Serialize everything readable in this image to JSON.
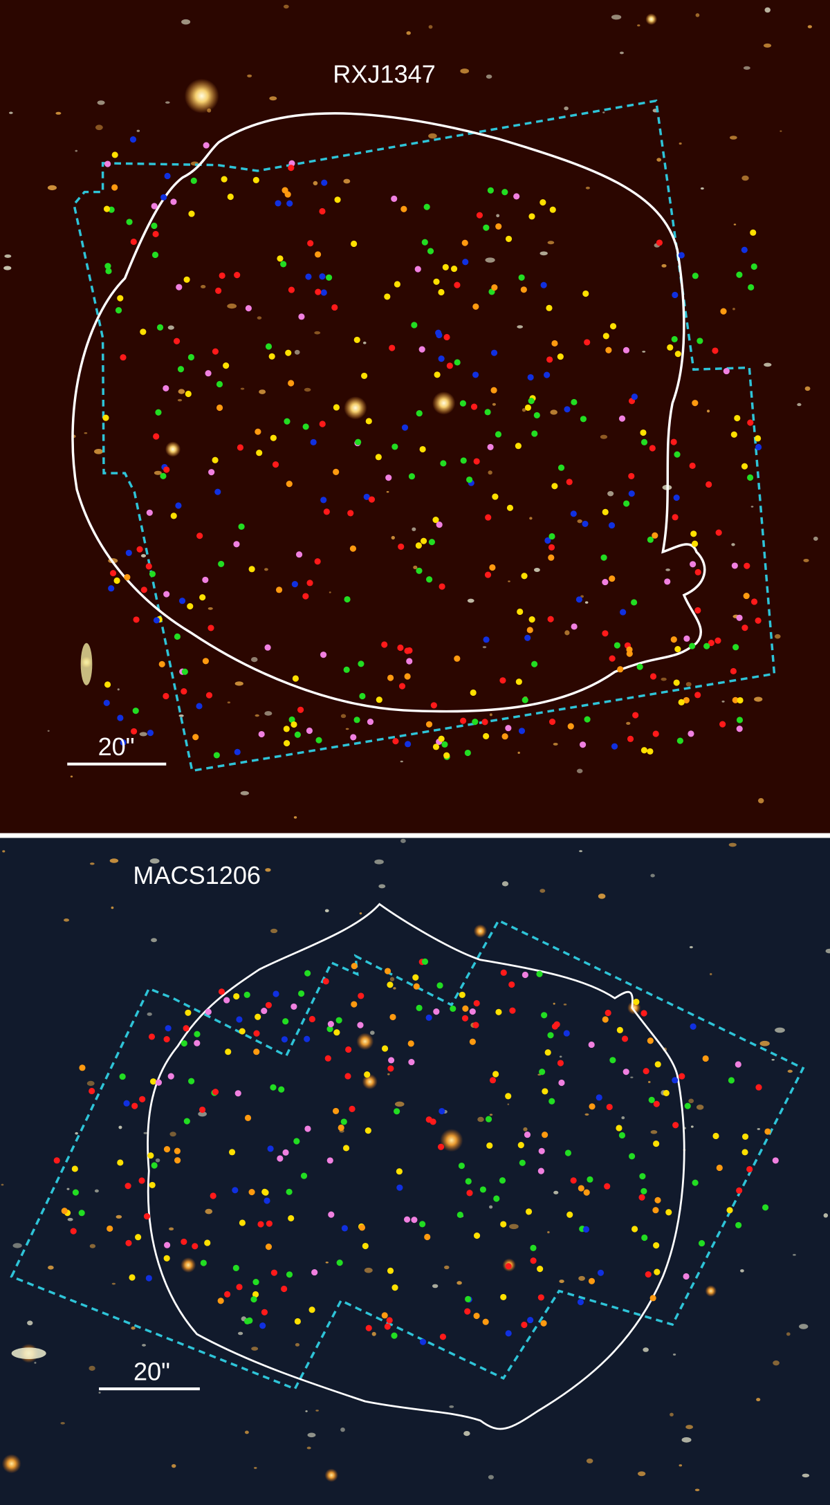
{
  "panels": [
    {
      "label": "RXJ1347",
      "scale_label": "20\""
    },
    {
      "label": "MACS1206",
      "scale_label": "20\""
    }
  ]
}
